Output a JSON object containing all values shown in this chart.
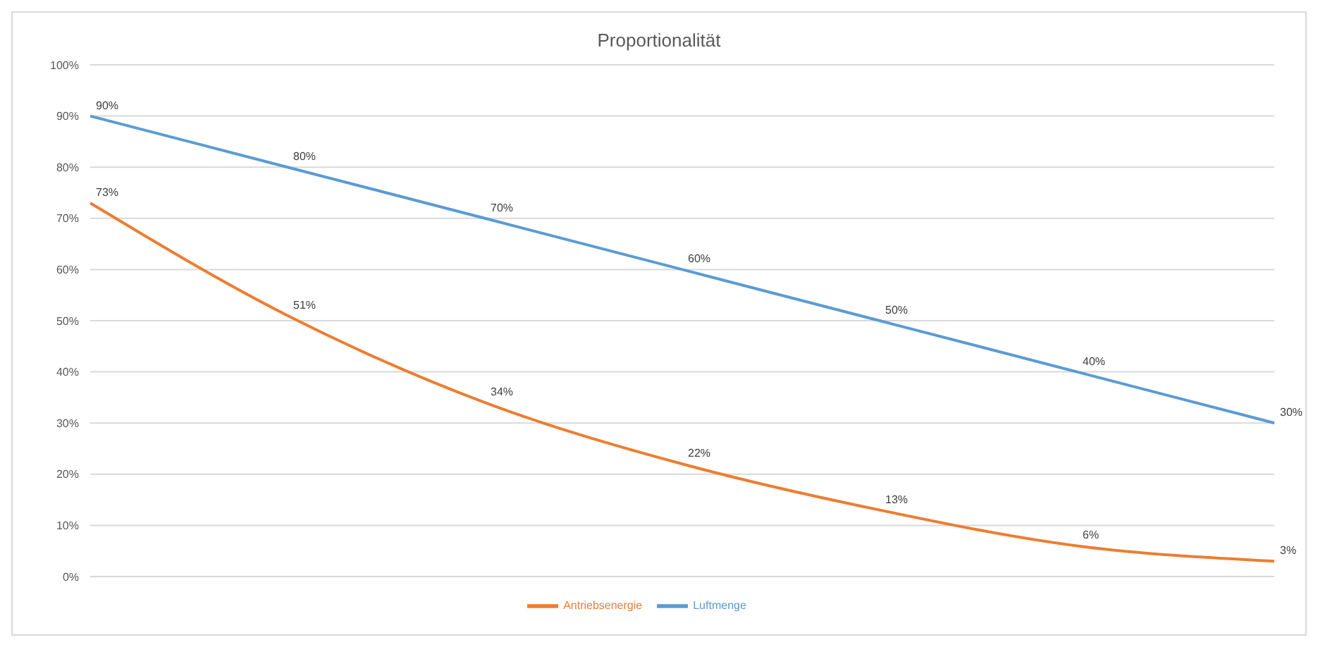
{
  "chart_data": {
    "type": "line",
    "title": "Proportionalität",
    "categories": [
      null,
      null,
      null,
      null,
      null,
      null,
      null
    ],
    "series": [
      {
        "name": "Luftmenge",
        "color": "#5b9bd5",
        "values": [
          90,
          80,
          70,
          60,
          50,
          40,
          30
        ],
        "value_labels": [
          "90%",
          "80%",
          "70%",
          "60%",
          "50%",
          "40%",
          "30%"
        ]
      },
      {
        "name": "Antriebsenergie",
        "color": "#ed7d31",
        "values": [
          73,
          51,
          34,
          22,
          13,
          6,
          3
        ],
        "value_labels": [
          "73%",
          "51%",
          "34%",
          "22%",
          "13%",
          "6%",
          "3%"
        ]
      }
    ],
    "ylim": [
      0,
      100
    ],
    "yticks": [
      {
        "value": 0,
        "label": "0%"
      },
      {
        "value": 10,
        "label": "10%"
      },
      {
        "value": 20,
        "label": "20%"
      },
      {
        "value": 30,
        "label": "30%"
      },
      {
        "value": 40,
        "label": "40%"
      },
      {
        "value": 50,
        "label": "50%"
      },
      {
        "value": 60,
        "label": "60%"
      },
      {
        "value": 70,
        "label": "70%"
      },
      {
        "value": 80,
        "label": "80%"
      },
      {
        "value": 90,
        "label": "90%"
      },
      {
        "value": 100,
        "label": "100%"
      }
    ],
    "grid": "y",
    "legend": "bottom",
    "marker": "none",
    "line_style": "solid"
  }
}
